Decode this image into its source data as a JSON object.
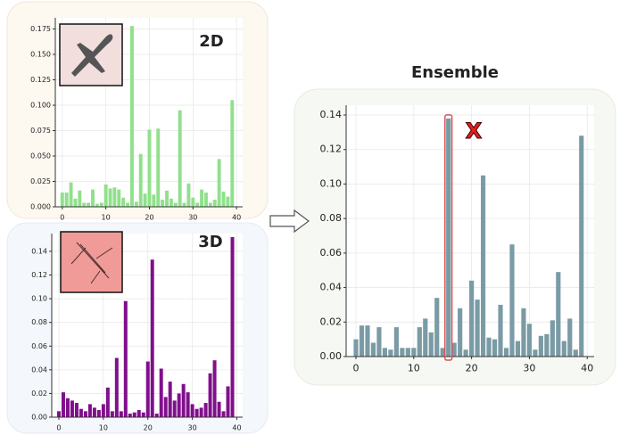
{
  "chart_data": [
    {
      "type": "bar",
      "title": "2D",
      "color": "#90e08c",
      "x": [
        0,
        1,
        2,
        3,
        4,
        5,
        6,
        7,
        8,
        9,
        10,
        11,
        12,
        13,
        14,
        15,
        16,
        17,
        18,
        19,
        20,
        21,
        22,
        23,
        24,
        25,
        26,
        27,
        28,
        29,
        30,
        31,
        32,
        33,
        34,
        35,
        36,
        37,
        38,
        39
      ],
      "values": [
        0.014,
        0.014,
        0.024,
        0.008,
        0.016,
        0.004,
        0.004,
        0.017,
        0.003,
        0.004,
        0.022,
        0.018,
        0.019,
        0.017,
        0.009,
        0.004,
        0.178,
        0.005,
        0.052,
        0.013,
        0.076,
        0.012,
        0.077,
        0.007,
        0.016,
        0.008,
        0.004,
        0.095,
        0.004,
        0.023,
        0.009,
        0.004,
        0.017,
        0.014,
        0.004,
        0.007,
        0.047,
        0.015,
        0.01,
        0.105
      ],
      "xlim": [
        -1.6,
        41.4
      ],
      "ylim": [
        0,
        0.186
      ],
      "xticks": [
        0,
        10,
        20,
        30,
        40
      ],
      "yticks": [
        {
          "value": 0,
          "label": "0.000"
        },
        {
          "value": 0.025,
          "label": "0.025"
        },
        {
          "value": 0.05,
          "label": "0.050"
        },
        {
          "value": 0.075,
          "label": "0.075"
        },
        {
          "value": 0.1,
          "label": "0.100"
        },
        {
          "value": 0.125,
          "label": "0.125"
        },
        {
          "value": 0.15,
          "label": "0.150"
        },
        {
          "value": 0.175,
          "label": "0.175"
        }
      ],
      "grid": true
    },
    {
      "type": "bar",
      "title": "3D",
      "color": "#800f8c",
      "x": [
        0,
        1,
        2,
        3,
        4,
        5,
        6,
        7,
        8,
        9,
        10,
        11,
        12,
        13,
        14,
        15,
        16,
        17,
        18,
        19,
        20,
        21,
        22,
        23,
        24,
        25,
        26,
        27,
        28,
        29,
        30,
        31,
        32,
        33,
        34,
        35,
        36,
        37,
        38,
        39
      ],
      "values": [
        0.005,
        0.021,
        0.016,
        0.014,
        0.012,
        0.007,
        0.005,
        0.011,
        0.008,
        0.006,
        0.011,
        0.025,
        0.005,
        0.05,
        0.005,
        0.098,
        0.003,
        0.004,
        0.006,
        0.004,
        0.047,
        0.133,
        0.003,
        0.041,
        0.017,
        0.03,
        0.014,
        0.02,
        0.028,
        0.021,
        0.011,
        0.007,
        0.008,
        0.012,
        0.037,
        0.048,
        0.013,
        0.005,
        0.026,
        0.152
      ],
      "xlim": [
        -1.6,
        41.3
      ],
      "ylim": [
        0,
        0.155
      ],
      "xticks": [
        0,
        10,
        20,
        30,
        40
      ],
      "yticks": [
        {
          "value": 0,
          "label": "0.00"
        },
        {
          "value": 0.02,
          "label": "0.02"
        },
        {
          "value": 0.04,
          "label": "0.04"
        },
        {
          "value": 0.06,
          "label": "0.06"
        },
        {
          "value": 0.08,
          "label": "0.08"
        },
        {
          "value": 0.1,
          "label": "0.10"
        },
        {
          "value": 0.12,
          "label": "0.12"
        },
        {
          "value": 0.14,
          "label": "0.14"
        }
      ],
      "grid": true
    },
    {
      "type": "bar",
      "title": "Ensemble",
      "color": "#7a9ba5",
      "annotation": "X",
      "highlight": 16,
      "x": [
        0,
        1,
        2,
        3,
        4,
        5,
        6,
        7,
        8,
        9,
        10,
        11,
        12,
        13,
        14,
        15,
        16,
        17,
        18,
        19,
        20,
        21,
        22,
        23,
        24,
        25,
        26,
        27,
        28,
        29,
        30,
        31,
        32,
        33,
        34,
        35,
        36,
        37,
        38,
        39
      ],
      "values": [
        0.01,
        0.018,
        0.018,
        0.008,
        0.017,
        0.005,
        0.004,
        0.017,
        0.005,
        0.005,
        0.005,
        0.017,
        0.022,
        0.014,
        0.034,
        0.005,
        0.138,
        0.008,
        0.028,
        0.004,
        0.044,
        0.033,
        0.105,
        0.011,
        0.01,
        0.03,
        0.005,
        0.065,
        0.009,
        0.028,
        0.019,
        0.004,
        0.012,
        0.013,
        0.021,
        0.049,
        0.009,
        0.022,
        0.004,
        0.128
      ],
      "xlim": [
        -1.7,
        41.2
      ],
      "ylim": [
        0,
        0.1457
      ],
      "xticks": [
        0,
        10,
        20,
        30,
        40
      ],
      "yticks": [
        {
          "value": 0,
          "label": "0.00"
        },
        {
          "value": 0.02,
          "label": "0.02"
        },
        {
          "value": 0.04,
          "label": "0.04"
        },
        {
          "value": 0.06,
          "label": "0.06"
        },
        {
          "value": 0.08,
          "label": "0.08"
        },
        {
          "value": 0.1,
          "label": "0.10"
        },
        {
          "value": 0.12,
          "label": "0.12"
        },
        {
          "value": 0.14,
          "label": "0.14"
        }
      ],
      "grid": true
    }
  ]
}
